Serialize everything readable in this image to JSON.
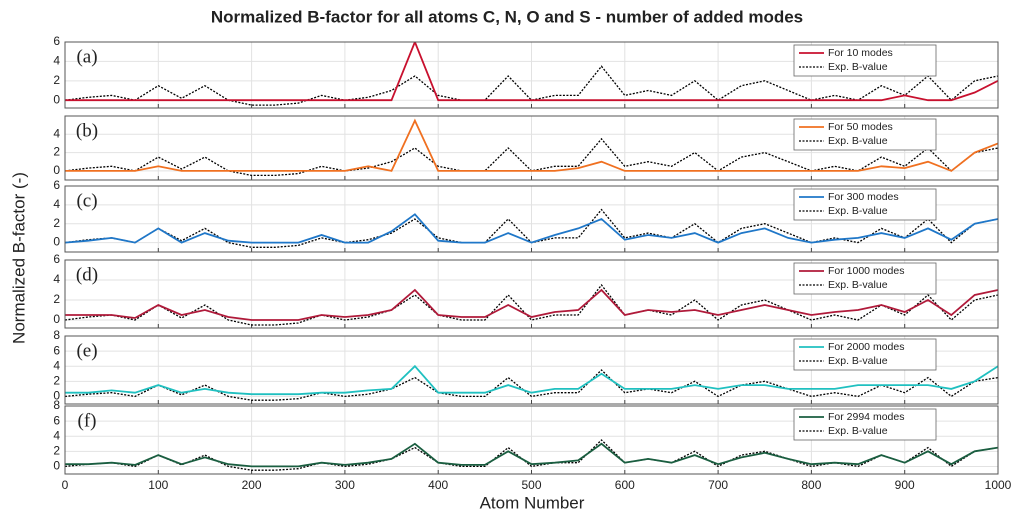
{
  "title": "Normalized B-factor for all atoms C, N, O and S - number of added modes",
  "ylabel": "Normalized B-factor (-)",
  "xlabel": "Atom Number",
  "chart_data": [
    {
      "type": "line",
      "label": "(a)",
      "legend": "upper right",
      "grid": true,
      "xlim": [
        0,
        1000
      ],
      "xticks": [
        0,
        100,
        200,
        300,
        400,
        500,
        600,
        700,
        800,
        900,
        1000
      ],
      "ylim": [
        -0.8,
        6
      ],
      "yticks": [
        0,
        2,
        4,
        6
      ],
      "x": [
        0,
        25,
        50,
        75,
        100,
        125,
        150,
        175,
        200,
        225,
        250,
        275,
        300,
        325,
        350,
        375,
        400,
        425,
        450,
        475,
        500,
        525,
        550,
        575,
        600,
        625,
        650,
        675,
        700,
        725,
        750,
        775,
        800,
        825,
        850,
        875,
        900,
        925,
        950,
        975,
        1000
      ],
      "series": [
        {
          "name": "For 10 modes",
          "color": "#c8102e",
          "values": [
            0,
            0,
            0,
            0,
            0,
            0,
            0,
            0,
            0,
            0,
            0,
            0,
            0,
            0,
            0,
            6,
            0,
            0,
            0,
            0,
            0,
            0,
            0,
            0,
            0,
            0,
            0,
            0,
            0,
            0,
            0,
            0,
            0,
            0,
            0,
            0,
            0.5,
            0,
            0,
            0.8,
            2
          ]
        },
        {
          "name": "Exp. B-value",
          "color": "#000000",
          "dashed": true,
          "values": [
            0,
            0.3,
            0.5,
            0,
            1.5,
            0.2,
            1.5,
            0,
            -0.5,
            -0.5,
            -0.3,
            0.5,
            0,
            0.3,
            1,
            2.5,
            0.5,
            0,
            0,
            2.5,
            0,
            0.5,
            0.5,
            3.5,
            0.5,
            1,
            0.5,
            2,
            0,
            1.5,
            2,
            1,
            0,
            0.5,
            0,
            1.5,
            0.5,
            2.5,
            0,
            2,
            2.5
          ]
        }
      ]
    },
    {
      "type": "line",
      "label": "(b)",
      "legend": "upper right",
      "grid": true,
      "xlim": [
        0,
        1000
      ],
      "xticks": [
        0,
        100,
        200,
        300,
        400,
        500,
        600,
        700,
        800,
        900,
        1000
      ],
      "ylim": [
        -1,
        6
      ],
      "yticks": [
        0,
        2,
        4
      ],
      "x": [
        0,
        25,
        50,
        75,
        100,
        125,
        150,
        175,
        200,
        225,
        250,
        275,
        300,
        325,
        350,
        375,
        400,
        425,
        450,
        475,
        500,
        525,
        550,
        575,
        600,
        625,
        650,
        675,
        700,
        725,
        750,
        775,
        800,
        825,
        850,
        875,
        900,
        925,
        950,
        975,
        1000
      ],
      "series": [
        {
          "name": "For 50 modes",
          "color": "#f07020",
          "values": [
            0,
            0,
            0,
            0,
            0.5,
            0,
            0,
            0,
            0,
            0,
            0,
            0,
            0,
            0.5,
            0,
            5.5,
            0,
            0,
            0,
            0,
            0,
            0,
            0.3,
            1,
            0,
            0,
            0,
            0,
            0,
            0,
            0,
            0,
            0,
            0,
            0,
            0.5,
            0.3,
            1,
            0,
            2,
            3
          ]
        },
        {
          "name": "Exp. B-value",
          "color": "#000000",
          "dashed": true,
          "values": [
            0,
            0.3,
            0.5,
            0,
            1.5,
            0.2,
            1.5,
            0,
            -0.5,
            -0.5,
            -0.3,
            0.5,
            0,
            0.3,
            1,
            2.5,
            0.5,
            0,
            0,
            2.5,
            0,
            0.5,
            0.5,
            3.5,
            0.5,
            1,
            0.5,
            2,
            0,
            1.5,
            2,
            1,
            0,
            0.5,
            0,
            1.5,
            0.5,
            2.5,
            0,
            2,
            2.5
          ]
        }
      ]
    },
    {
      "type": "line",
      "label": "(c)",
      "legend": "upper right",
      "grid": true,
      "xlim": [
        0,
        1000
      ],
      "xticks": [
        0,
        100,
        200,
        300,
        400,
        500,
        600,
        700,
        800,
        900,
        1000
      ],
      "ylim": [
        -1,
        6
      ],
      "yticks": [
        0,
        2,
        4,
        6
      ],
      "x": [
        0,
        25,
        50,
        75,
        100,
        125,
        150,
        175,
        200,
        225,
        250,
        275,
        300,
        325,
        350,
        375,
        400,
        425,
        450,
        475,
        500,
        525,
        550,
        575,
        600,
        625,
        650,
        675,
        700,
        725,
        750,
        775,
        800,
        825,
        850,
        875,
        900,
        925,
        950,
        975,
        1000
      ],
      "series": [
        {
          "name": "For 300 modes",
          "color": "#1f77c8",
          "values": [
            0,
            0.2,
            0.5,
            0,
            1.5,
            0,
            1,
            0.2,
            0,
            0,
            0,
            0.8,
            0,
            0,
            1.2,
            3,
            0.2,
            0,
            0,
            1,
            0,
            0.8,
            1.5,
            2.5,
            0.3,
            0.8,
            0.5,
            1,
            0,
            1,
            1.5,
            0.5,
            0,
            0.3,
            0.5,
            1,
            0.5,
            1.5,
            0.3,
            2,
            2.5
          ]
        },
        {
          "name": "Exp. B-value",
          "color": "#000000",
          "dashed": true,
          "values": [
            0,
            0.3,
            0.5,
            0,
            1.5,
            0.2,
            1.5,
            0,
            -0.5,
            -0.5,
            -0.3,
            0.5,
            0,
            0.3,
            1,
            2.5,
            0.5,
            0,
            0,
            2.5,
            0,
            0.5,
            0.5,
            3.5,
            0.5,
            1,
            0.5,
            2,
            0,
            1.5,
            2,
            1,
            0,
            0.5,
            0,
            1.5,
            0.5,
            2.5,
            0,
            2,
            2.5
          ]
        }
      ]
    },
    {
      "type": "line",
      "label": "(d)",
      "legend": "upper right",
      "grid": true,
      "xlim": [
        0,
        1000
      ],
      "xticks": [
        0,
        100,
        200,
        300,
        400,
        500,
        600,
        700,
        800,
        900,
        1000
      ],
      "ylim": [
        -0.8,
        6
      ],
      "yticks": [
        0,
        2,
        4,
        6
      ],
      "x": [
        0,
        25,
        50,
        75,
        100,
        125,
        150,
        175,
        200,
        225,
        250,
        275,
        300,
        325,
        350,
        375,
        400,
        425,
        450,
        475,
        500,
        525,
        550,
        575,
        600,
        625,
        650,
        675,
        700,
        725,
        750,
        775,
        800,
        825,
        850,
        875,
        900,
        925,
        950,
        975,
        1000
      ],
      "series": [
        {
          "name": "For 1000 modes",
          "color": "#b01a3a",
          "values": [
            0.5,
            0.5,
            0.5,
            0.2,
            1.5,
            0.5,
            1,
            0.3,
            0,
            0,
            0,
            0.5,
            0.3,
            0.5,
            1,
            3,
            0.5,
            0.3,
            0.3,
            1.5,
            0.3,
            0.8,
            1,
            3,
            0.5,
            1,
            0.8,
            1,
            0.5,
            1,
            1.5,
            1,
            0.5,
            0.8,
            1,
            1.5,
            0.8,
            2,
            0.5,
            2.5,
            3
          ]
        },
        {
          "name": "Exp. B-value",
          "color": "#000000",
          "dashed": true,
          "values": [
            0,
            0.3,
            0.5,
            0,
            1.5,
            0.2,
            1.5,
            0,
            -0.5,
            -0.5,
            -0.3,
            0.5,
            0,
            0.3,
            1,
            2.5,
            0.5,
            0,
            0,
            2.5,
            0,
            0.5,
            0.5,
            3.5,
            0.5,
            1,
            0.5,
            2,
            0,
            1.5,
            2,
            1,
            0,
            0.5,
            0,
            1.5,
            0.5,
            2.5,
            0,
            2,
            2.5
          ]
        }
      ]
    },
    {
      "type": "line",
      "label": "(e)",
      "legend": "upper right",
      "grid": true,
      "xlim": [
        0,
        1000
      ],
      "xticks": [
        0,
        100,
        200,
        300,
        400,
        500,
        600,
        700,
        800,
        900,
        1000
      ],
      "ylim": [
        -1,
        8
      ],
      "yticks": [
        0,
        2,
        4,
        6,
        8
      ],
      "x": [
        0,
        25,
        50,
        75,
        100,
        125,
        150,
        175,
        200,
        225,
        250,
        275,
        300,
        325,
        350,
        375,
        400,
        425,
        450,
        475,
        500,
        525,
        550,
        575,
        600,
        625,
        650,
        675,
        700,
        725,
        750,
        775,
        800,
        825,
        850,
        875,
        900,
        925,
        950,
        975,
        1000
      ],
      "series": [
        {
          "name": "For 2000 modes",
          "color": "#20c0c0",
          "values": [
            0.5,
            0.5,
            0.8,
            0.5,
            1.5,
            0.5,
            1,
            0.5,
            0.3,
            0.3,
            0.3,
            0.5,
            0.5,
            0.8,
            1,
            4,
            0.5,
            0.5,
            0.5,
            1.5,
            0.5,
            1,
            1,
            3,
            1,
            1,
            1,
            1.5,
            1,
            1.5,
            1.5,
            1,
            1,
            1,
            1.5,
            1.5,
            1.5,
            1.5,
            1,
            2,
            4
          ]
        },
        {
          "name": "Exp. B-value",
          "color": "#000000",
          "dashed": true,
          "values": [
            0,
            0.3,
            0.5,
            0,
            1.5,
            0.2,
            1.5,
            0,
            -0.5,
            -0.5,
            -0.3,
            0.5,
            0,
            0.3,
            1,
            2.5,
            0.5,
            0,
            0,
            2.5,
            0,
            0.5,
            0.5,
            3.5,
            0.5,
            1,
            0.5,
            2,
            0,
            1.5,
            2,
            1,
            0,
            0.5,
            0,
            1.5,
            0.5,
            2.5,
            0,
            2,
            2.5
          ]
        }
      ]
    },
    {
      "type": "line",
      "label": "(f)",
      "legend": "upper right",
      "grid": true,
      "show_xtick_labels": true,
      "xlim": [
        0,
        1000
      ],
      "xticks": [
        0,
        100,
        200,
        300,
        400,
        500,
        600,
        700,
        800,
        900,
        1000
      ],
      "ylim": [
        -1,
        8
      ],
      "yticks": [
        0,
        2,
        4,
        6,
        8
      ],
      "x": [
        0,
        25,
        50,
        75,
        100,
        125,
        150,
        175,
        200,
        225,
        250,
        275,
        300,
        325,
        350,
        375,
        400,
        425,
        450,
        475,
        500,
        525,
        550,
        575,
        600,
        625,
        650,
        675,
        700,
        725,
        750,
        775,
        800,
        825,
        850,
        875,
        900,
        925,
        950,
        975,
        1000
      ],
      "series": [
        {
          "name": "For 2994 modes",
          "color": "#1a5e40",
          "values": [
            0.3,
            0.3,
            0.5,
            0.2,
            1.5,
            0.3,
            1.2,
            0.3,
            0,
            0,
            0,
            0.5,
            0.2,
            0.5,
            1,
            3,
            0.5,
            0.2,
            0.2,
            2,
            0.3,
            0.5,
            0.8,
            3,
            0.5,
            1,
            0.5,
            1.5,
            0.3,
            1.2,
            1.8,
            1,
            0.3,
            0.5,
            0.3,
            1.5,
            0.5,
            2,
            0.3,
            2,
            2.5
          ]
        },
        {
          "name": "Exp. B-value",
          "color": "#000000",
          "dashed": true,
          "values": [
            0,
            0.3,
            0.5,
            0,
            1.5,
            0.2,
            1.5,
            0,
            -0.5,
            -0.5,
            -0.3,
            0.5,
            0,
            0.3,
            1,
            2.5,
            0.5,
            0,
            0,
            2.5,
            0,
            0.5,
            0.5,
            3.5,
            0.5,
            1,
            0.5,
            2,
            0,
            1.5,
            2,
            1,
            0,
            0.5,
            0,
            1.5,
            0.5,
            2.5,
            0,
            2,
            2.5
          ]
        }
      ]
    }
  ]
}
